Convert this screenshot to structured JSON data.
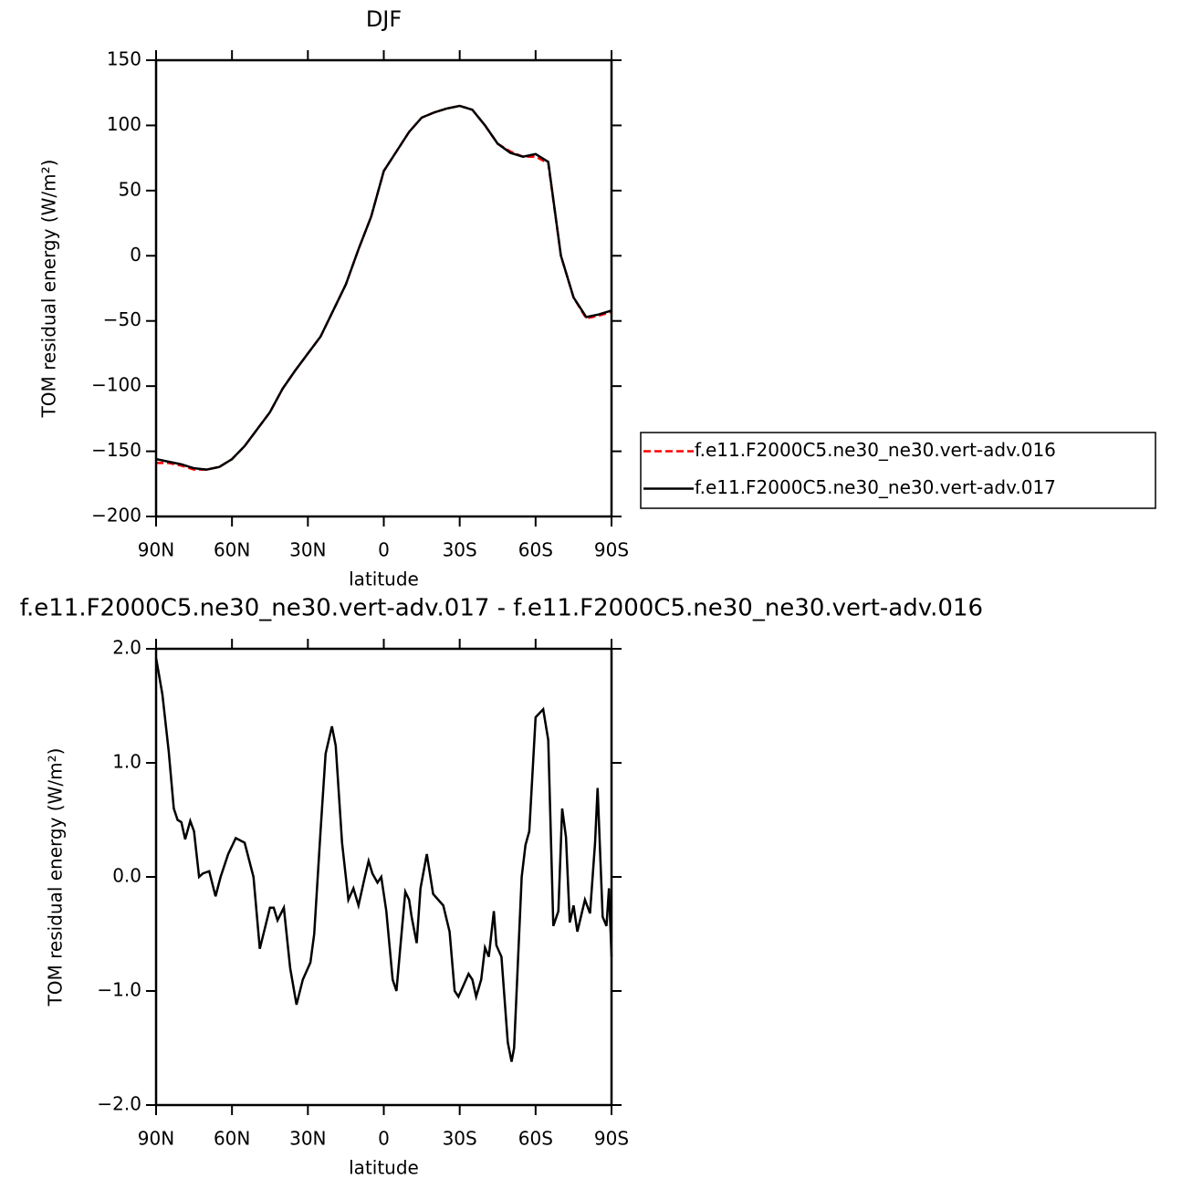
{
  "chart_data": [
    {
      "type": "line",
      "title": "DJF",
      "x_label": "latitude",
      "y_label": "TOM residual energy (W/m²)",
      "x": [
        90,
        85,
        80,
        75,
        70,
        65,
        60,
        55,
        50,
        45,
        40,
        35,
        30,
        25,
        20,
        15,
        10,
        5,
        0,
        -5,
        -10,
        -15,
        -20,
        -25,
        -30,
        -35,
        -40,
        -45,
        -50,
        -55,
        -60,
        -65,
        -70,
        -75,
        -80,
        -85,
        -90
      ],
      "series": [
        {
          "name": "f.e11.F2000C5.ne30_ne30.vert-adv.016",
          "color": "#ff0000",
          "linestyle": "dashed",
          "values": [
            -159,
            -159,
            -161,
            -164,
            -164,
            -162,
            -156,
            -146,
            -133,
            -120,
            -102,
            -88,
            -75,
            -62,
            -42,
            -22,
            5,
            30,
            65,
            80,
            95,
            106,
            110,
            113,
            115,
            112,
            100,
            86,
            80,
            76,
            76,
            71,
            0,
            -32,
            -48,
            -46,
            -43
          ]
        },
        {
          "name": "f.e11.F2000C5.ne30_ne30.vert-adv.017",
          "color": "#000000",
          "linestyle": "solid",
          "values": [
            -156,
            -158,
            -160,
            -163,
            -164,
            -162,
            -156,
            -146,
            -133,
            -120,
            -102,
            -88,
            -75,
            -62,
            -42,
            -22,
            5,
            30,
            65,
            80,
            95,
            106,
            110,
            113,
            115,
            112,
            100,
            86,
            79,
            76,
            78,
            72,
            0,
            -32,
            -47,
            -45,
            -42
          ]
        }
      ],
      "xlim": [
        90,
        -90
      ],
      "xticks": [
        {
          "value": 90,
          "label": "90N"
        },
        {
          "value": 60,
          "label": "60N"
        },
        {
          "value": 30,
          "label": "30N"
        },
        0,
        {
          "value": -30,
          "label": "30S"
        },
        {
          "value": -60,
          "label": "60S"
        },
        {
          "value": -90,
          "label": "90S"
        }
      ],
      "ylim": [
        -200,
        150
      ],
      "yticks": [
        {
          "value": -200,
          "label": "−200"
        },
        {
          "value": -150,
          "label": "−150"
        },
        {
          "value": -100,
          "label": "−100"
        },
        {
          "value": -50,
          "label": "−50"
        },
        0,
        50,
        100,
        150
      ],
      "legend": "right"
    },
    {
      "type": "line",
      "title": "f.e11.F2000C5.ne30_ne30.vert-adv.017 - f.e11.F2000C5.ne30_ne30.vert-adv.016",
      "x_label": "latitude",
      "y_label": "TOM residual energy (W/m²)",
      "x": [
        90,
        87.5,
        85,
        83,
        81.5,
        80,
        78.5,
        76.5,
        75,
        73,
        71.5,
        69,
        66.5,
        64.5,
        61.5,
        58.5,
        55,
        51.5,
        49,
        47,
        45,
        43.5,
        42,
        39.5,
        37,
        34.5,
        32,
        29,
        27.5,
        25,
        23,
        20.5,
        19,
        16.5,
        14,
        12,
        10,
        7.5,
        6,
        4.5,
        2.5,
        1,
        -1,
        -3.5,
        -5,
        -7,
        -8.5,
        -10,
        -11,
        -13,
        -14.5,
        -17,
        -19.5,
        -21.5,
        -23.5,
        -26,
        -28,
        -29.5,
        -31.5,
        -33.5,
        -35,
        -36.5,
        -38.5,
        -40,
        -41.5,
        -43.5,
        -44.5,
        -46.5,
        -49,
        -50.5,
        -51.5,
        -54.5,
        -56,
        -57.5,
        -60,
        -63,
        -65,
        -67,
        -69,
        -70.5,
        -72,
        -73.5,
        -75,
        -76.5,
        -79.5,
        -81.5,
        -83.5,
        -84.5,
        -86.5,
        -88,
        -89,
        -90
      ],
      "series": [
        {
          "color": "#000000",
          "linestyle": "solid",
          "values": [
            1.92,
            1.6,
            1.1,
            0.6,
            0.5,
            0.48,
            0.33,
            0.49,
            0.4,
            0.0,
            0.03,
            0.05,
            -0.17,
            0.0,
            0.2,
            0.34,
            0.3,
            0.0,
            -0.63,
            -0.45,
            -0.27,
            -0.27,
            -0.38,
            -0.27,
            -0.8,
            -1.12,
            -0.9,
            -0.75,
            -0.5,
            0.4,
            1.08,
            1.32,
            1.15,
            0.3,
            -0.2,
            -0.1,
            -0.25,
            0.0,
            0.14,
            0.03,
            -0.05,
            0.0,
            -0.3,
            -0.9,
            -1.0,
            -0.5,
            -0.13,
            -0.2,
            -0.35,
            -0.58,
            -0.1,
            0.2,
            -0.15,
            -0.2,
            -0.25,
            -0.48,
            -1.0,
            -1.05,
            -0.95,
            -0.85,
            -0.9,
            -1.05,
            -0.9,
            -0.62,
            -0.7,
            -0.3,
            -0.6,
            -0.7,
            -1.45,
            -1.62,
            -1.5,
            0.0,
            0.28,
            0.4,
            1.4,
            1.47,
            1.2,
            -0.43,
            -0.3,
            0.6,
            0.35,
            -0.4,
            -0.25,
            -0.48,
            -0.2,
            -0.32,
            0.3,
            0.78,
            -0.35,
            -0.43,
            -0.1,
            -0.7
          ]
        }
      ],
      "xlim": [
        90,
        -90
      ],
      "xticks": [
        {
          "value": 90,
          "label": "90N"
        },
        {
          "value": 60,
          "label": "60N"
        },
        {
          "value": 30,
          "label": "30N"
        },
        0,
        {
          "value": -30,
          "label": "30S"
        },
        {
          "value": -60,
          "label": "60S"
        },
        {
          "value": -90,
          "label": "90S"
        }
      ],
      "ylim": [
        -2,
        2
      ],
      "yticks": [
        {
          "value": -2,
          "label": "−2.0"
        },
        {
          "value": -1,
          "label": "−1.0"
        },
        {
          "value": 0,
          "label": "0.0"
        },
        {
          "value": 1,
          "label": "1.0"
        },
        {
          "value": 2,
          "label": "2.0"
        }
      ]
    }
  ]
}
